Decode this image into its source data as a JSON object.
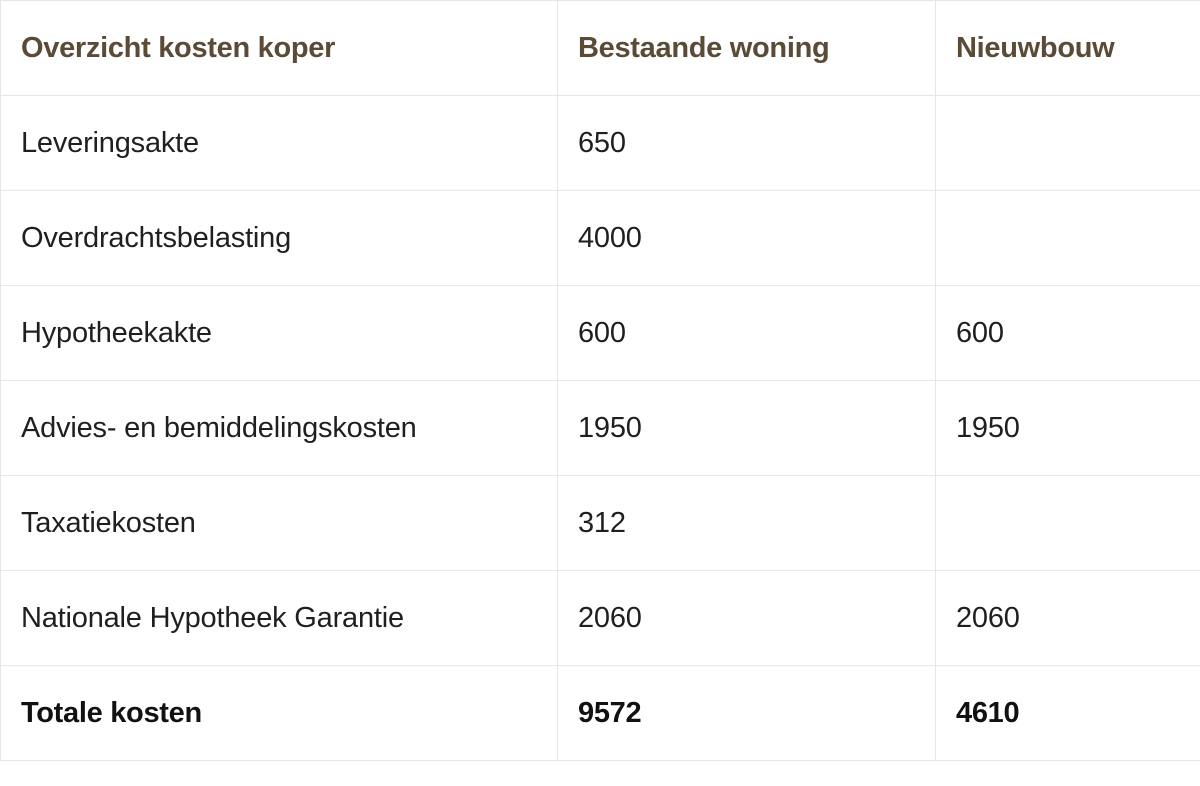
{
  "table": {
    "headers": [
      "Overzicht kosten koper",
      "Bestaande woning",
      "Nieuwbouw"
    ],
    "rows": [
      {
        "label": "Leveringsakte",
        "bestaand": "650",
        "nieuwbouw": ""
      },
      {
        "label": "Overdrachtsbelasting",
        "bestaand": "4000",
        "nieuwbouw": ""
      },
      {
        "label": "Hypotheekakte",
        "bestaand": "600",
        "nieuwbouw": "600"
      },
      {
        "label": "Advies- en bemiddelingskosten",
        "bestaand": "1950",
        "nieuwbouw": "1950"
      },
      {
        "label": "Taxatiekosten",
        "bestaand": "312",
        "nieuwbouw": ""
      },
      {
        "label": "Nationale Hypotheek Garantie",
        "bestaand": "2060",
        "nieuwbouw": "2060"
      }
    ],
    "total": {
      "label": "Totale kosten",
      "bestaand": "9572",
      "nieuwbouw": "4610"
    }
  },
  "colors": {
    "header_text": "#5a4a36",
    "body_text": "#1f1f1f",
    "grid_line": "#e6e6e6"
  }
}
